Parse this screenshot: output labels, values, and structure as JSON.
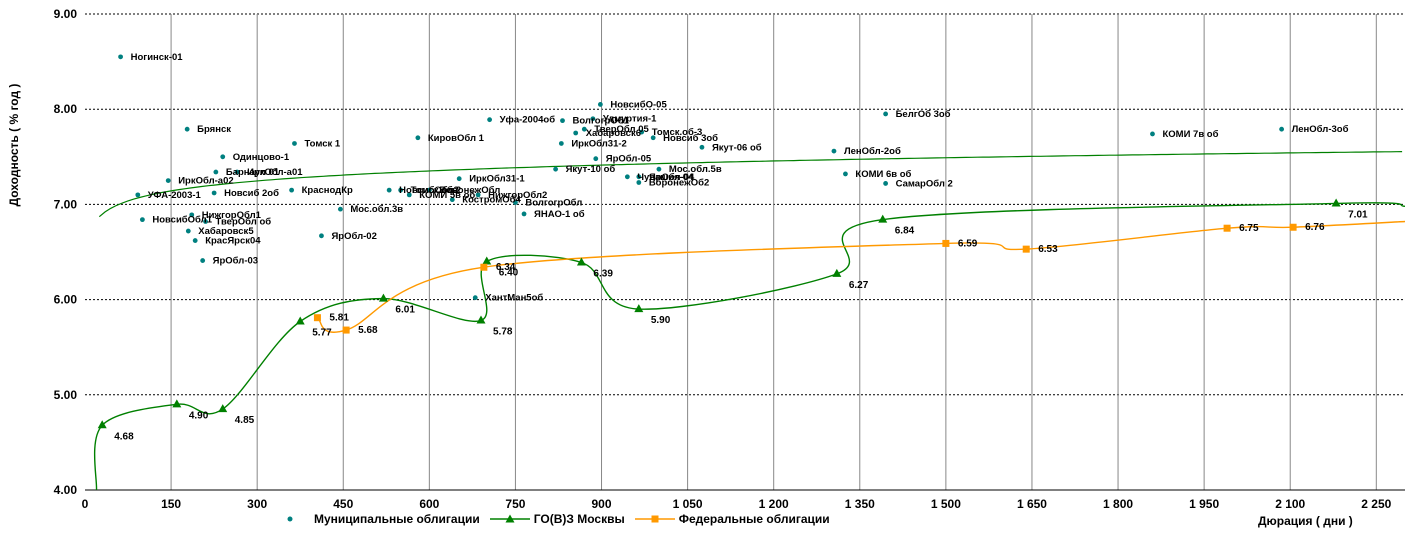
{
  "chart_data": {
    "type": "scatter",
    "title": "",
    "xlabel": "Дюрация ( дни )",
    "ylabel": "Доходность ( % год )",
    "xlim": [
      0,
      2300
    ],
    "ylim": [
      4.0,
      9.0
    ],
    "grid": true,
    "legend_position": "bottom",
    "x_ticks": [
      "0",
      "150",
      "300",
      "450",
      "600",
      "750",
      "900",
      "1 050",
      "1 200",
      "1 350",
      "1 500",
      "1 650",
      "1 800",
      "1 950",
      "2 100",
      "2 250"
    ],
    "y_ticks": [
      "4.00",
      "5.00",
      "6.00",
      "7.00",
      "8.00",
      "9.00"
    ],
    "series": [
      {
        "name": "Муниципальные облигации",
        "color": "#008080",
        "points": [
          {
            "x": 62,
            "y": 8.55,
            "label": "Ногинск-01"
          },
          {
            "x": 178,
            "y": 7.79,
            "label": "Брянск"
          },
          {
            "x": 365,
            "y": 7.64,
            "label": "Томск 1"
          },
          {
            "x": 240,
            "y": 7.5,
            "label": "Одинцово-1"
          },
          {
            "x": 228,
            "y": 7.34,
            "label": "Барнаул 01"
          },
          {
            "x": 265,
            "y": 7.34,
            "label": "ИркОбл-а01"
          },
          {
            "x": 145,
            "y": 7.25,
            "label": "ИркОбл-а02"
          },
          {
            "x": 360,
            "y": 7.15,
            "label": "КраснодКр"
          },
          {
            "x": 92,
            "y": 7.1,
            "label": "УФА-2003-1"
          },
          {
            "x": 225,
            "y": 7.12,
            "label": "Новсиб 2об"
          },
          {
            "x": 100,
            "y": 6.84,
            "label": "НовсибОбл1"
          },
          {
            "x": 186,
            "y": 6.89,
            "label": "НижгорОбл1"
          },
          {
            "x": 210,
            "y": 6.82,
            "label": "ТверОбл об"
          },
          {
            "x": 180,
            "y": 6.72,
            "label": "Хабаровск5"
          },
          {
            "x": 192,
            "y": 6.62,
            "label": "КрасЯрск04"
          },
          {
            "x": 205,
            "y": 6.41,
            "label": "ЯрОбл-03"
          },
          {
            "x": 412,
            "y": 6.67,
            "label": "ЯрОбл-02"
          },
          {
            "x": 445,
            "y": 6.95,
            "label": "Мос.обл.3в"
          },
          {
            "x": 530,
            "y": 7.15,
            "label": "НовсибОбл2"
          },
          {
            "x": 550,
            "y": 7.15,
            "label": "Томск.об-2"
          },
          {
            "x": 565,
            "y": 7.1,
            "label": "КОМИ 5в об"
          },
          {
            "x": 600,
            "y": 7.15,
            "label": "ВоронежОбл"
          },
          {
            "x": 652,
            "y": 7.27,
            "label": "ИркОбл31-1"
          },
          {
            "x": 685,
            "y": 7.1,
            "label": "НижгорОбл2"
          },
          {
            "x": 640,
            "y": 7.05,
            "label": "КостромОб4"
          },
          {
            "x": 750,
            "y": 7.02,
            "label": "ВолгогрОбл"
          },
          {
            "x": 765,
            "y": 6.9,
            "label": "ЯНАО-1 об"
          },
          {
            "x": 580,
            "y": 7.7,
            "label": "КировОбл 1"
          },
          {
            "x": 705,
            "y": 7.89,
            "label": "Уфа-2004об"
          },
          {
            "x": 832,
            "y": 7.88,
            "label": "ВолгогрОб1"
          },
          {
            "x": 898,
            "y": 8.05,
            "label": "НовсибО-05"
          },
          {
            "x": 885,
            "y": 7.9,
            "label": "Удмуртия-1"
          },
          {
            "x": 870,
            "y": 7.79,
            "label": "ТверОбл 05"
          },
          {
            "x": 855,
            "y": 7.75,
            "label": "Хабаровск6"
          },
          {
            "x": 970,
            "y": 7.76,
            "label": "Томск.об-3"
          },
          {
            "x": 990,
            "y": 7.7,
            "label": "Новсиб 3об"
          },
          {
            "x": 830,
            "y": 7.64,
            "label": "ИркОбл31-2"
          },
          {
            "x": 1075,
            "y": 7.6,
            "label": "Якут-06 об"
          },
          {
            "x": 890,
            "y": 7.48,
            "label": "ЯрОбл-05"
          },
          {
            "x": 820,
            "y": 7.37,
            "label": "Якут-10 об"
          },
          {
            "x": 1000,
            "y": 7.37,
            "label": "Мос.обл.5в"
          },
          {
            "x": 945,
            "y": 7.29,
            "label": "Чувашия-04"
          },
          {
            "x": 965,
            "y": 7.29,
            "label": "ЯрОбл-04"
          },
          {
            "x": 965,
            "y": 7.23,
            "label": "ВоронежОб2"
          },
          {
            "x": 680,
            "y": 6.02,
            "label": "ХантМан5об"
          },
          {
            "x": 1395,
            "y": 7.95,
            "label": "БелгОб 3об"
          },
          {
            "x": 1305,
            "y": 7.56,
            "label": "ЛенОбл-2об"
          },
          {
            "x": 1325,
            "y": 7.32,
            "label": "КОМИ 6в об"
          },
          {
            "x": 1395,
            "y": 7.22,
            "label": "СамарОбл 2"
          },
          {
            "x": 1860,
            "y": 7.74,
            "label": "КОМИ 7в об"
          },
          {
            "x": 2085,
            "y": 7.79,
            "label": "ЛенОбл-3об"
          }
        ]
      },
      {
        "name": "ГО(В)З Москвы",
        "color": "#008000",
        "points": [
          {
            "x": 30,
            "y": 4.68,
            "label": "4.68"
          },
          {
            "x": 160,
            "y": 4.9,
            "label": "4.90"
          },
          {
            "x": 240,
            "y": 4.85,
            "label": "4.85"
          },
          {
            "x": 375,
            "y": 5.77,
            "label": "5.77"
          },
          {
            "x": 520,
            "y": 6.01,
            "label": "6.01"
          },
          {
            "x": 690,
            "y": 5.78,
            "label": "5.78"
          },
          {
            "x": 700,
            "y": 6.4,
            "label": "6.40"
          },
          {
            "x": 865,
            "y": 6.39,
            "label": "6.39"
          },
          {
            "x": 965,
            "y": 5.9,
            "label": "5.90"
          },
          {
            "x": 1310,
            "y": 6.27,
            "label": "6.27"
          },
          {
            "x": 1390,
            "y": 6.84,
            "label": "6.84"
          },
          {
            "x": 2180,
            "y": 7.01,
            "label": "7.01"
          }
        ]
      },
      {
        "name": "Федеральные облигации",
        "color": "#FF9900",
        "points": [
          {
            "x": 405,
            "y": 5.81,
            "label": "5.81"
          },
          {
            "x": 455,
            "y": 5.68,
            "label": "5.68"
          },
          {
            "x": 695,
            "y": 6.34,
            "label": "6.34"
          },
          {
            "x": 1500,
            "y": 6.59,
            "label": "6.59"
          },
          {
            "x": 1640,
            "y": 6.53,
            "label": "6.53"
          },
          {
            "x": 1990,
            "y": 6.75,
            "label": "6.75"
          },
          {
            "x": 2105,
            "y": 6.76,
            "label": "6.76"
          }
        ]
      }
    ],
    "trend": {
      "series": "Муниципальные облигации",
      "color": "#008000",
      "type": "logarithmic"
    }
  }
}
